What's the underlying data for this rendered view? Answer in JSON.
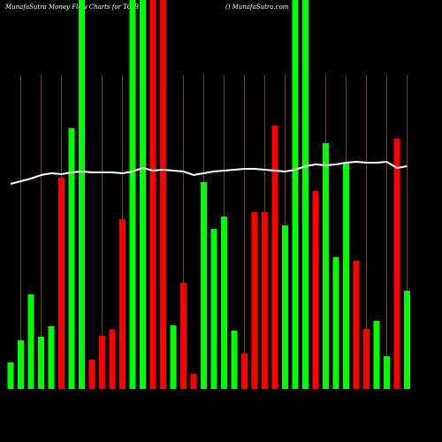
{
  "chart_data": {
    "type": "bar",
    "title": "MunafaSutra  Money Flow  Charts for TCIB",
    "subtitle": "() MunafaSutra.com",
    "categories": [
      null,
      null,
      null,
      null,
      null,
      null,
      null,
      null,
      null,
      null,
      null,
      null,
      null,
      null,
      null,
      null,
      null,
      null,
      null,
      null,
      null,
      null,
      null,
      null,
      null,
      null,
      null,
      null,
      null,
      null,
      null,
      null,
      null,
      null,
      null,
      null,
      null,
      null,
      null,
      null
    ],
    "values": [
      30,
      55,
      107,
      59,
      71,
      239,
      295,
      440,
      33,
      60,
      67,
      192,
      440,
      440,
      440,
      440,
      72,
      120,
      17,
      234,
      181,
      195,
      66,
      40,
      200,
      200,
      298,
      185,
      440,
      440,
      224,
      278,
      149,
      256,
      145,
      68,
      77,
      37,
      283,
      111
    ],
    "colors": [
      "#00ff00",
      "#00ff00",
      "#00ff00",
      "#00ff00",
      "#00ff00",
      "#ff0000",
      "#00ff00",
      "#00ff00",
      "#ff0000",
      "#ff0000",
      "#ff0000",
      "#ff0000",
      "#00ff00",
      "#00ff00",
      "#ff0000",
      "#ff0000",
      "#00ff00",
      "#ff0000",
      "#ff0000",
      "#00ff00",
      "#00ff00",
      "#00ff00",
      "#00ff00",
      "#ff0000",
      "#ff0000",
      "#ff0000",
      "#ff0000",
      "#00ff00",
      "#00ff00",
      "#00ff00",
      "#ff0000",
      "#00ff00",
      "#00ff00",
      "#00ff00",
      "#ff0000",
      "#ff0000",
      "#00ff00",
      "#00ff00",
      "#ff0000",
      "#00ff00"
    ],
    "line": {
      "color": "#ffffff",
      "values": [
        232,
        235,
        238,
        242,
        244,
        243,
        245,
        246,
        245,
        245,
        245,
        244,
        246,
        250,
        247,
        248,
        247,
        246,
        242,
        244,
        246,
        247,
        248,
        249,
        249,
        248,
        247,
        246,
        248,
        252,
        254,
        253,
        254,
        256,
        257,
        256,
        256,
        257,
        250,
        252
      ]
    },
    "ylim": [
      0,
      440
    ]
  }
}
